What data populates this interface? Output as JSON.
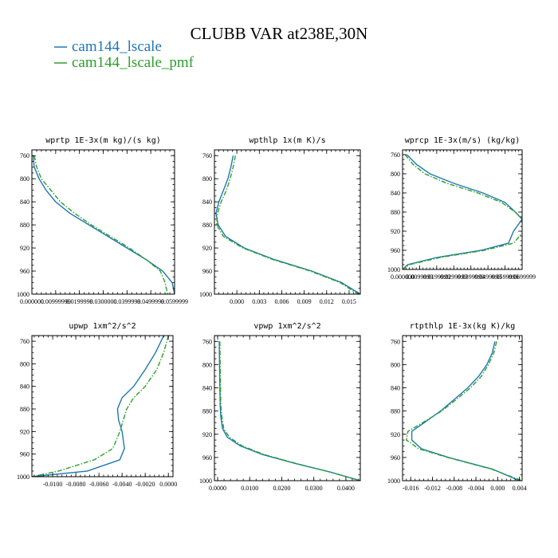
{
  "figure": {
    "title": "CLUBB VAR at238E,30N",
    "legend": [
      {
        "name": "cam144_lscale",
        "color": "#1f77b4",
        "dash": "solid"
      },
      {
        "name": "cam144_lscale_pmf",
        "color": "#2ca02c",
        "dash": "dashdot"
      }
    ]
  },
  "chart_data": [
    {
      "type": "line",
      "title": "wprtp  1E-3x(m kg)/(s kg)",
      "xlim": [
        0.0,
        0.06
      ],
      "ylim": [
        750,
        1000
      ],
      "y_inverted": true,
      "yticks": [
        760,
        800,
        840,
        880,
        920,
        960,
        1000
      ],
      "xticks": [
        0.0,
        0.01,
        0.02,
        0.03,
        0.04,
        0.05,
        0.06
      ],
      "xtick_labels": [
        "0.000000",
        "0.00999999",
        "0.0199999",
        "0.0300000",
        "0.0399999",
        "0.0499999",
        "0.0599999"
      ],
      "series": [
        {
          "name": "cam144_lscale",
          "x": [
            0.0005,
            0.001,
            0.003,
            0.006,
            0.01,
            0.016,
            0.024,
            0.032,
            0.04,
            0.048,
            0.055,
            0.059,
            0.06
          ],
          "y": [
            760,
            780,
            800,
            820,
            840,
            860,
            880,
            900,
            920,
            940,
            960,
            980,
            1000
          ]
        },
        {
          "name": "cam144_lscale_pmf",
          "x": [
            0.001,
            0.002,
            0.004,
            0.008,
            0.012,
            0.018,
            0.025,
            0.033,
            0.041,
            0.048,
            0.054,
            0.056,
            0.057
          ],
          "y": [
            760,
            780,
            800,
            820,
            840,
            860,
            880,
            900,
            920,
            940,
            960,
            980,
            1000
          ]
        }
      ]
    },
    {
      "type": "line",
      "title": "wpthlp  1x(m K)/s",
      "xlim": [
        -0.003,
        0.0165
      ],
      "ylim": [
        750,
        1000
      ],
      "y_inverted": true,
      "yticks": [
        760,
        800,
        840,
        880,
        920,
        960,
        1000
      ],
      "xticks": [
        0.0,
        0.003,
        0.006,
        0.009,
        0.012,
        0.015
      ],
      "xtick_labels": [
        "0.000",
        "0.003",
        "0.006",
        "0.009",
        "0.012",
        "0.015"
      ],
      "series": [
        {
          "name": "cam144_lscale",
          "x": [
            -0.0005,
            -0.0008,
            -0.0012,
            -0.0018,
            -0.0024,
            -0.0028,
            -0.0025,
            -0.0015,
            0.001,
            0.005,
            0.01,
            0.014,
            0.0165
          ],
          "y": [
            760,
            780,
            800,
            820,
            840,
            860,
            880,
            900,
            920,
            940,
            960,
            980,
            1000
          ]
        },
        {
          "name": "cam144_lscale_pmf",
          "x": [
            -0.0002,
            -0.0005,
            -0.0009,
            -0.0014,
            -0.0021,
            -0.0026,
            -0.0027,
            -0.0018,
            0.0008,
            0.0048,
            0.0098,
            0.0138,
            0.0162
          ],
          "y": [
            760,
            780,
            800,
            820,
            840,
            860,
            880,
            900,
            920,
            940,
            960,
            980,
            1000
          ]
        }
      ]
    },
    {
      "type": "line",
      "title": "wprcp  1E-3x(m/s) (kg/kg)",
      "xlim": [
        0.0,
        0.07
      ],
      "ylim": [
        750,
        1000
      ],
      "y_inverted": true,
      "yticks": [
        760,
        800,
        840,
        880,
        920,
        960,
        1000
      ],
      "xticks": [
        0.0,
        0.01,
        0.02,
        0.03,
        0.04,
        0.05,
        0.06,
        0.07
      ],
      "xtick_labels": [
        "0.000000",
        "0.0099999",
        "0.0199999",
        "0.0299999",
        "0.0399999",
        "0.0499999",
        "0.0599999",
        "0.0699999"
      ],
      "series": [
        {
          "name": "cam144_lscale",
          "x": [
            0.0025,
            0.008,
            0.016,
            0.03,
            0.047,
            0.06,
            0.066,
            0.07,
            0.065,
            0.062,
            0.046,
            0.02,
            0.003,
            0.0
          ],
          "y": [
            760,
            780,
            800,
            820,
            840,
            860,
            880,
            895,
            920,
            945,
            960,
            975,
            990,
            1000
          ]
        },
        {
          "name": "cam144_lscale_pmf",
          "x": [
            0.0015,
            0.006,
            0.013,
            0.026,
            0.044,
            0.058,
            0.066,
            0.07,
            0.071,
            0.065,
            0.048,
            0.022,
            0.004,
            0.0
          ],
          "y": [
            760,
            780,
            800,
            820,
            840,
            860,
            880,
            895,
            920,
            945,
            960,
            975,
            990,
            1000
          ]
        }
      ]
    },
    {
      "type": "line",
      "title": "upwp  1xm^2/s^2",
      "xlim": [
        -0.0118,
        0.0004
      ],
      "ylim": [
        750,
        1000
      ],
      "y_inverted": true,
      "yticks": [
        760,
        800,
        840,
        880,
        920,
        960,
        1000
      ],
      "xticks": [
        -0.01,
        -0.008,
        -0.006,
        -0.004,
        -0.002,
        0.0
      ],
      "xtick_labels": [
        "-0.0100",
        "-0.0080",
        "-0.0060",
        "-0.0040",
        "-0.0020",
        "0.0000"
      ],
      "series": [
        {
          "name": "cam144_lscale",
          "x": [
            -0.0004,
            -0.0011,
            -0.002,
            -0.003,
            -0.004,
            -0.0044,
            -0.0043,
            -0.004,
            -0.0038,
            -0.0042,
            -0.007,
            -0.0118
          ],
          "y": [
            750,
            780,
            810,
            840,
            860,
            880,
            900,
            920,
            950,
            970,
            990,
            1000
          ]
        },
        {
          "name": "cam144_lscale_pmf",
          "x": [
            0.0,
            -0.0004,
            -0.001,
            -0.002,
            -0.003,
            -0.0036,
            -0.0039,
            -0.0042,
            -0.0048,
            -0.0064,
            -0.0095,
            -0.0118
          ],
          "y": [
            750,
            780,
            810,
            840,
            860,
            880,
            900,
            920,
            950,
            970,
            990,
            1000
          ]
        }
      ]
    },
    {
      "type": "line",
      "title": "vpwp  1xm^2/s^2",
      "xlim": [
        -0.001,
        0.0445
      ],
      "ylim": [
        750,
        1000
      ],
      "y_inverted": true,
      "yticks": [
        760,
        800,
        840,
        880,
        920,
        960,
        1000
      ],
      "xticks": [
        0.0,
        0.01,
        0.02,
        0.03,
        0.04
      ],
      "xtick_labels": [
        "0.0000",
        "0.0100",
        "0.0200",
        "0.0300",
        "0.0400"
      ],
      "series": [
        {
          "name": "cam144_lscale",
          "x": [
            0.0005,
            0.0006,
            0.0007,
            0.0008,
            0.001,
            0.0015,
            0.003,
            0.007,
            0.014,
            0.024,
            0.035,
            0.0445
          ],
          "y": [
            760,
            800,
            840,
            870,
            890,
            910,
            925,
            940,
            955,
            970,
            985,
            1000
          ]
        },
        {
          "name": "cam144_lscale_pmf",
          "x": [
            0.0007,
            0.0008,
            0.0009,
            0.001,
            0.0013,
            0.0019,
            0.0036,
            0.0076,
            0.0145,
            0.0243,
            0.035,
            0.0445
          ],
          "y": [
            760,
            800,
            840,
            870,
            890,
            910,
            925,
            940,
            955,
            970,
            985,
            1000
          ]
        }
      ]
    },
    {
      "type": "line",
      "title": "rtpthlp  1E-3x(kg K)/kg",
      "xlim": [
        -0.0175,
        0.0045
      ],
      "ylim": [
        750,
        1000
      ],
      "y_inverted": true,
      "yticks": [
        760,
        800,
        840,
        880,
        920,
        960,
        1000
      ],
      "xticks": [
        -0.016,
        -0.012,
        -0.008,
        -0.004,
        0.0,
        0.004
      ],
      "xtick_labels": [
        "-0.016",
        "-0.012",
        "-0.008",
        "-0.004",
        "0.000",
        "0.004"
      ],
      "series": [
        {
          "name": "cam144_lscale",
          "x": [
            -0.0005,
            -0.001,
            -0.002,
            -0.0035,
            -0.0055,
            -0.008,
            -0.0105,
            -0.0135,
            -0.0158,
            -0.0158,
            -0.014,
            -0.009,
            -0.001,
            0.004
          ],
          "y": [
            760,
            780,
            800,
            820,
            840,
            860,
            880,
            900,
            915,
            930,
            945,
            960,
            980,
            1000
          ]
        },
        {
          "name": "cam144_lscale_pmf",
          "x": [
            -0.0002,
            -0.0007,
            -0.0017,
            -0.003,
            -0.005,
            -0.0076,
            -0.0103,
            -0.0138,
            -0.0165,
            -0.0168,
            -0.0145,
            -0.0092,
            -0.0012,
            0.0045
          ],
          "y": [
            760,
            780,
            800,
            820,
            840,
            860,
            880,
            900,
            915,
            930,
            945,
            960,
            980,
            1000
          ]
        }
      ]
    }
  ]
}
